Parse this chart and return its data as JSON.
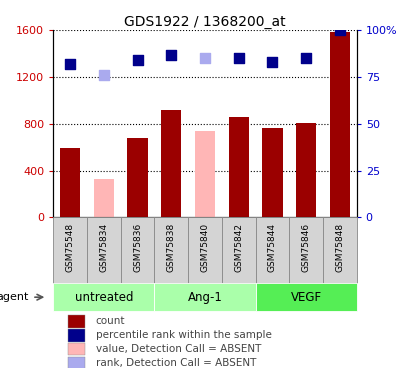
{
  "title": "GDS1922 / 1368200_at",
  "samples": [
    "GSM75548",
    "GSM75834",
    "GSM75836",
    "GSM75838",
    "GSM75840",
    "GSM75842",
    "GSM75844",
    "GSM75846",
    "GSM75848"
  ],
  "bar_values": [
    590,
    null,
    680,
    920,
    null,
    860,
    760,
    810,
    1580
  ],
  "bar_absent_values": [
    null,
    330,
    null,
    null,
    740,
    null,
    null,
    null,
    null
  ],
  "bar_color_present": "#9b0000",
  "bar_color_absent": "#ffb6b6",
  "rank_values": [
    1310,
    null,
    1340,
    1390,
    null,
    1360,
    1330,
    1360,
    1600
  ],
  "rank_absent_values": [
    null,
    1220,
    null,
    null,
    1360,
    null,
    null,
    null,
    null
  ],
  "rank_color_present": "#00008b",
  "rank_color_absent": "#aaaaee",
  "ylim_left": [
    0,
    1600
  ],
  "ylim_right": [
    0,
    100
  ],
  "left_yticks": [
    0,
    400,
    800,
    1200,
    1600
  ],
  "right_yticks": [
    0,
    25,
    50,
    75,
    100
  ],
  "right_yticklabels": [
    "0",
    "25",
    "50",
    "75",
    "100%"
  ],
  "left_ycolor": "#cc0000",
  "right_ycolor": "#0000cc",
  "groups": [
    {
      "label": "untreated",
      "start": 0,
      "end": 3,
      "color": "#aaffaa"
    },
    {
      "label": "Ang-1",
      "start": 3,
      "end": 6,
      "color": "#aaffaa"
    },
    {
      "label": "VEGF",
      "start": 6,
      "end": 9,
      "color": "#55ee55"
    }
  ],
  "agent_label": "agent",
  "legend_items": [
    {
      "label": "count",
      "color": "#9b0000"
    },
    {
      "label": "percentile rank within the sample",
      "color": "#00008b"
    },
    {
      "label": "value, Detection Call = ABSENT",
      "color": "#ffb6b6"
    },
    {
      "label": "rank, Detection Call = ABSENT",
      "color": "#aaaaee"
    }
  ],
  "bar_width": 0.6,
  "rank_marker_size": 45,
  "sample_box_color": "#d4d4d4",
  "sample_box_border": "#888888"
}
